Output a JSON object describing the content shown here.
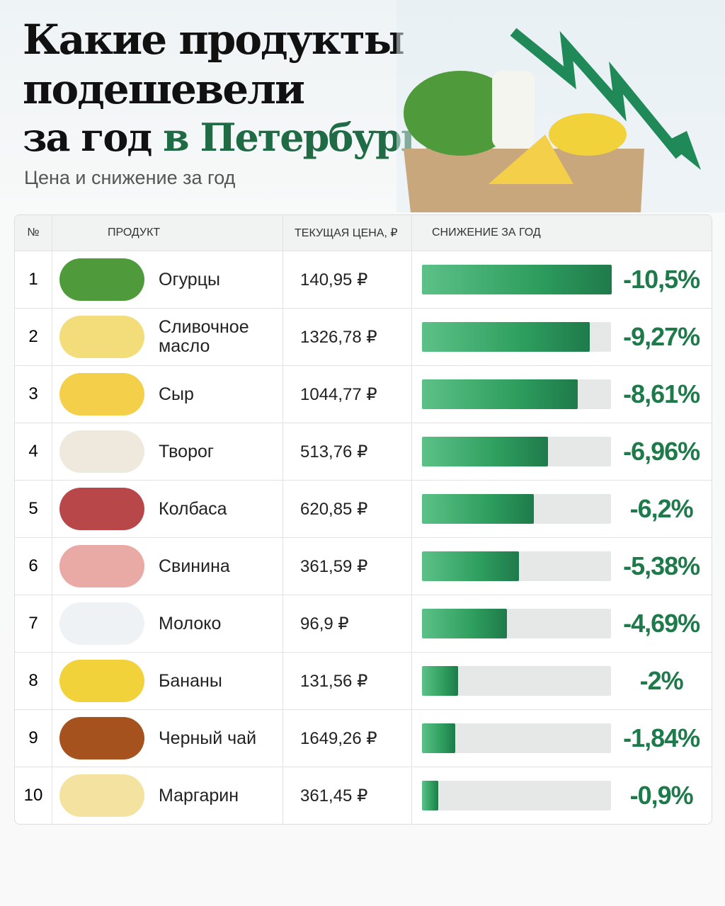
{
  "header": {
    "title_line1": "Какие продукты",
    "title_line2": "подешевели",
    "title_line3a": "за год",
    "title_line3b": "в Петербурге",
    "subtitle": "Цена и снижение за год"
  },
  "table": {
    "columns": [
      "№",
      "ПРОДУКТ",
      "ТЕКУЩАЯ ЦЕНА, ₽",
      "СНИЖЕНИЕ ЗА ГОД"
    ],
    "rows": [
      [
        "1",
        "Огурцы",
        "140,95 ₽"
      ],
      [
        "2",
        "Сливочное масло",
        "1326,78 ₽"
      ],
      [
        "3",
        "Сыр",
        "1044,77 ₽"
      ],
      [
        "4",
        "Творог",
        "513,76 ₽"
      ],
      [
        "5",
        "Колбаса",
        "620,85 ₽"
      ],
      [
        "6",
        "Свинина",
        "361,59 ₽"
      ],
      [
        "7",
        "Молоко",
        "96,9 ₽"
      ],
      [
        "8",
        "Бананы",
        "131,56 ₽"
      ],
      [
        "9",
        "Черный чай",
        "1649,26 ₽"
      ],
      [
        "10",
        "Маргарин",
        "361,45 ₽"
      ]
    ]
  },
  "chart_data": {
    "type": "bar",
    "orientation": "horizontal",
    "color": "#2e9e5e",
    "values": [
      -10.5,
      -9.27,
      -8.61,
      -6.96,
      -6.2,
      -5.38,
      -4.69,
      -2,
      -1.84,
      -0.9
    ],
    "value_labels": [
      "-10,5%",
      "-9,27%",
      "-8,61%",
      "-6,96%",
      "-6,2%",
      "-5,38%",
      "-4,69%",
      "-2%",
      "-1,84%",
      "-0,9%"
    ],
    "xlim": [
      0,
      -10.5
    ]
  }
}
